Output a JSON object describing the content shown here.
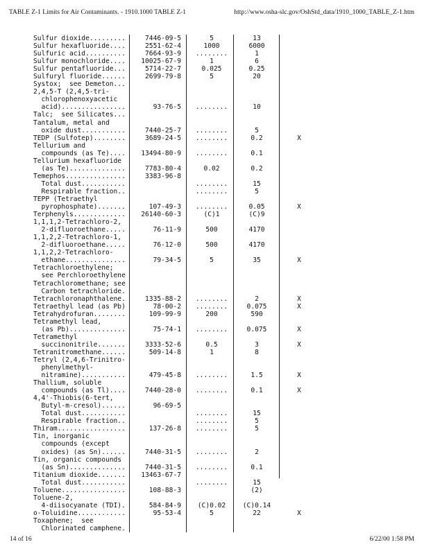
{
  "header": {
    "title": "TABLE Z-1 Limits for Air Contaminants. - 1910.1000 TABLE Z-1",
    "url": "http://www.osha-slc.gov/OshStd_data/1910_1000_TABLE_Z-1.htm"
  },
  "footer": {
    "page": "14 of 16",
    "datetime": "6/22/00 1:58 PM"
  },
  "table": {
    "rows": [
      [
        "Sulfur dioxide.........",
        "7446-09-5",
        "5",
        "13",
        ""
      ],
      [
        "Sulfur hexafluoride....",
        "2551-62-4",
        "1000",
        "6000",
        ""
      ],
      [
        "Sulfuric acid..........",
        "7664-93-9",
        "........",
        "1",
        ""
      ],
      [
        "Sulfur monochloride....",
        "10025-67-9",
        "1",
        "6",
        ""
      ],
      [
        "Sulfur pentafluoride...",
        "5714-22-7",
        "0.025",
        "0.25",
        ""
      ],
      [
        "Sulfuryl fluoride......",
        "2699-79-8",
        "5",
        "20",
        ""
      ],
      [
        "Systox;  see Demeton...",
        "",
        "",
        "",
        ""
      ],
      [
        "2,4,5-T (2,4,5-tri-",
        "",
        "",
        "",
        ""
      ],
      [
        "  chlorophenoxyacetic",
        "",
        "",
        "",
        ""
      ],
      [
        "  acid)................",
        "93-76-5",
        "........",
        "10",
        ""
      ],
      [
        "Talc;  see Silicates...",
        "",
        "",
        "",
        ""
      ],
      [
        "Tantalum, metal and",
        "",
        "",
        "",
        ""
      ],
      [
        "  oxide dust...........",
        "7440-25-7",
        "........",
        "5",
        ""
      ],
      [
        "TEDP (Sulfotep)........",
        "3689-24-5",
        "........",
        "0.2",
        "X"
      ],
      [
        "Tellurium and",
        "",
        "",
        "",
        ""
      ],
      [
        "  compounds (as Te)....",
        "13494-80-9",
        "........",
        "0.1",
        ""
      ],
      [
        "Tellurium hexafluoride",
        "",
        "",
        "",
        ""
      ],
      [
        "  (as Te)..............",
        "7783-80-4",
        "0.02",
        "0.2",
        ""
      ],
      [
        "Temephos...............",
        "3383-96-8",
        "",
        "",
        ""
      ],
      [
        "  Total dust...........",
        "",
        "........",
        "15",
        ""
      ],
      [
        "  Respirable fraction..",
        "",
        "........",
        "5",
        ""
      ],
      [
        "TEPP (Tetraethyl",
        "",
        "",
        "",
        ""
      ],
      [
        "  pyrophosphate).......",
        "107-49-3",
        "........",
        "0.05",
        "X"
      ],
      [
        "Terphenyls.............",
        "26140-60-3",
        "(C)1",
        "(C)9",
        ""
      ],
      [
        "1,1,1,2-Tetrachloro-2,",
        "",
        "",
        "",
        ""
      ],
      [
        "  2-difluoroethane.....",
        "76-11-9",
        "500",
        "4170",
        ""
      ],
      [
        "1,1,2,2-Tetrachloro-1,",
        "",
        "",
        "",
        ""
      ],
      [
        "  2-difluoroethane.....",
        "76-12-0",
        "500",
        "4170",
        ""
      ],
      [
        "1,1,2,2-Tetrachloro-",
        "",
        "",
        "",
        ""
      ],
      [
        "  ethane...............",
        "79-34-5",
        "5",
        "35",
        "X"
      ],
      [
        "Tetrachloroethylene;",
        "",
        "",
        "",
        ""
      ],
      [
        "  see Perchloroethylene",
        "",
        "",
        "",
        ""
      ],
      [
        "Tetrachloromethane; see",
        "",
        "",
        "",
        ""
      ],
      [
        "  Carbon tetrachloride.",
        "",
        "",
        "",
        ""
      ],
      [
        "Tetrachloronaphthalene.",
        "1335-88-2",
        "........",
        "2",
        "X"
      ],
      [
        "Tetraethyl lead (as Pb)",
        "78-00-2",
        "........",
        "0.075",
        "X"
      ],
      [
        "Tetrahydrofuran........",
        "109-99-9",
        "200",
        "590",
        ""
      ],
      [
        "Tetramethyl lead,",
        "",
        "",
        "",
        ""
      ],
      [
        "  (as Pb)..............",
        "75-74-1",
        "........",
        "0.075",
        "X"
      ],
      [
        "Tetramethyl",
        "",
        "",
        "",
        ""
      ],
      [
        "  succinonitrile.......",
        "3333-52-6",
        "0.5",
        "3",
        "X"
      ],
      [
        "Tetranitromethane......",
        "509-14-8",
        "1",
        "8",
        ""
      ],
      [
        "Tetryl (2,4,6-Trinitro-",
        "",
        "",
        "",
        ""
      ],
      [
        "  phenylmethyl-",
        "",
        "",
        "",
        ""
      ],
      [
        "  nitramine)...........",
        "479-45-8",
        "........",
        "1.5",
        "X"
      ],
      [
        "Thallium, soluble",
        "",
        "",
        "",
        ""
      ],
      [
        "  compounds (as Tl)....",
        "7440-28-0",
        "........",
        "0.1",
        "X"
      ],
      [
        "4,4'-Thiobis(6-tert,",
        "",
        "",
        "",
        ""
      ],
      [
        "  Butyl-m-cresol)......",
        "96-69-5",
        "",
        "",
        ""
      ],
      [
        "  Total dust...........",
        "",
        "........",
        "15",
        ""
      ],
      [
        "  Respirable fraction..",
        "",
        "........",
        "5",
        ""
      ],
      [
        "Thiram.................",
        "137-26-8",
        "........",
        "5",
        ""
      ],
      [
        "Tin, inorganic",
        "",
        "",
        "",
        ""
      ],
      [
        "  compounds (except",
        "",
        "",
        "",
        ""
      ],
      [
        "  oxides) (as Sn)......",
        "7440-31-5",
        "........",
        "2",
        ""
      ],
      [
        "Tin, organic compounds",
        "",
        "",
        "",
        ""
      ],
      [
        "  (as Sn)..............",
        "7440-31-5",
        "........",
        "0.1",
        ""
      ],
      [
        "Titanium dioxide.......",
        "13463-67-7",
        "",
        "",
        ""
      ],
      [
        "  Total dust...........",
        "",
        "........",
        "15",
        ""
      ],
      [
        "Toluene................",
        "108-88-3",
        "",
        "(2)",
        ""
      ],
      [
        "Toluene-2,",
        "",
        "",
        "",
        ""
      ],
      [
        "  4-diisocyanate (TDI).",
        "584-84-9",
        "(C)0.02",
        "(C)0.14",
        ""
      ],
      [
        "o-Toluidine............",
        "95-53-4",
        "5",
        "22",
        "X"
      ],
      [
        "Toxaphene;  see",
        "",
        "",
        "",
        ""
      ],
      [
        "  Chlorinated camphene.",
        "",
        "",
        "",
        ""
      ]
    ]
  }
}
